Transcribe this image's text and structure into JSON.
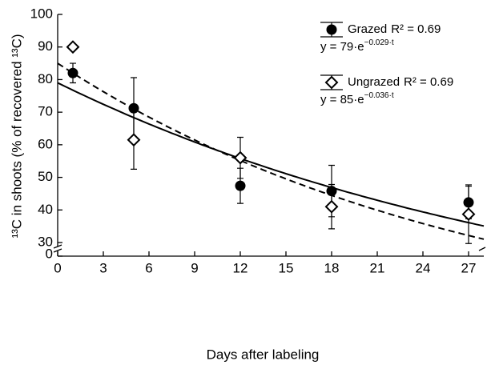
{
  "chart_data": {
    "type": "scatter",
    "x_label": "Days after labeling",
    "y_label": "¹³C in shoots (% of recovered ¹³C)",
    "xlim": [
      0,
      28
    ],
    "xticks": [
      0,
      3,
      6,
      9,
      12,
      15,
      18,
      21,
      24,
      27
    ],
    "ylim": [
      30,
      100
    ],
    "yticks": [
      30,
      40,
      50,
      60,
      70,
      80,
      90,
      100
    ],
    "y_break_tick": 0,
    "series": [
      {
        "name": "Grazed",
        "marker": "filled-circle",
        "line": "solid",
        "color": "#000000",
        "x": [
          1,
          5,
          12,
          18,
          27
        ],
        "values": [
          82,
          71.2,
          47.4,
          45.8,
          42.3
        ],
        "errors": [
          3,
          9.4,
          5.4,
          7.9,
          5
        ],
        "r2_text": "R² = 0.69",
        "equation": "y = 79·e",
        "equation_exp": "−0.029·t",
        "fit": {
          "a": 79,
          "k": -0.029
        }
      },
      {
        "name": "Ungrazed",
        "marker": "open-diamond",
        "line": "dashed",
        "color": "#000000",
        "x": [
          1,
          5,
          12,
          18,
          27
        ],
        "values": [
          90,
          61.5,
          56,
          41,
          38.7
        ],
        "errors": [
          0.6,
          9,
          6.3,
          6.8,
          9
        ],
        "r2_text": "R² = 0.69",
        "equation": "y = 85·e",
        "equation_exp": "−0.036·t",
        "fit": {
          "a": 85,
          "k": -0.036
        }
      }
    ]
  }
}
